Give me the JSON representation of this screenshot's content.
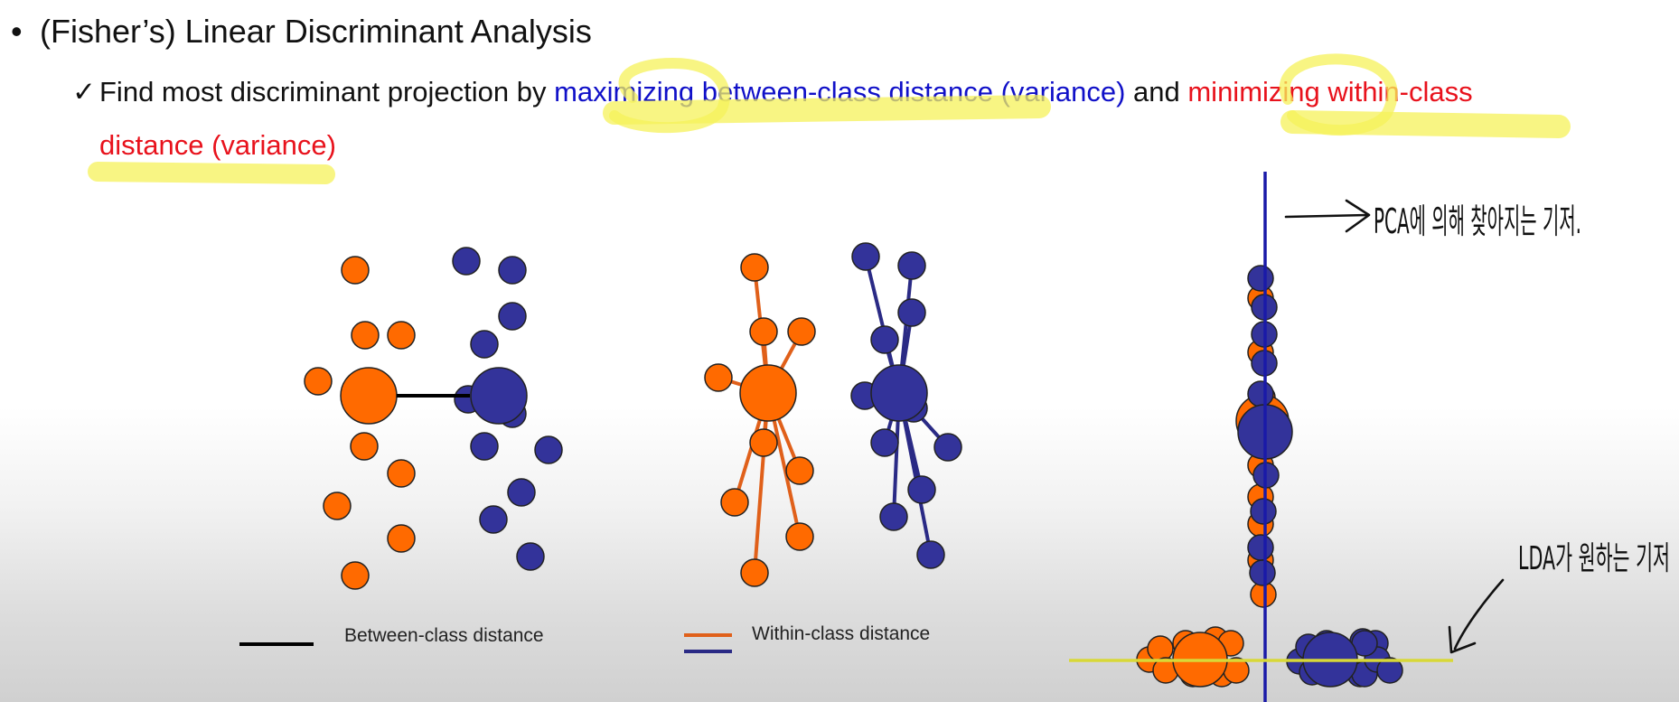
{
  "slide": {
    "bullet_symbol": "•",
    "heading": "(Fisher’s) Linear Discriminant Analysis",
    "check_symbol": "✓",
    "sub_text_1": "Find most discriminant projection by ",
    "sub_text_blue": "maximizing between-class distance (variance)",
    "sub_text_and": " and ",
    "sub_text_red_1": "minimizing within-class",
    "sub_text_red_2": "distance (variance)"
  },
  "legend": {
    "between_label": "Between-class distance",
    "within_label": "Within-class distance"
  },
  "handwriting": {
    "pca_note": "PCA에 의해 찾아지는 기저.",
    "lda_note": "LDA가 원하는 기저"
  },
  "colors": {
    "class_orange": "#ff6a00",
    "class_blue": "#33339a",
    "within_orange_line": "#e0601a",
    "within_blue_line": "#2a2a85",
    "text_blue": "#1010c8",
    "text_red": "#e8121c",
    "highlight_yellow": "#f5f25a",
    "pca_axis": "#1a1aa8",
    "lda_axis": "#d8d838"
  }
}
